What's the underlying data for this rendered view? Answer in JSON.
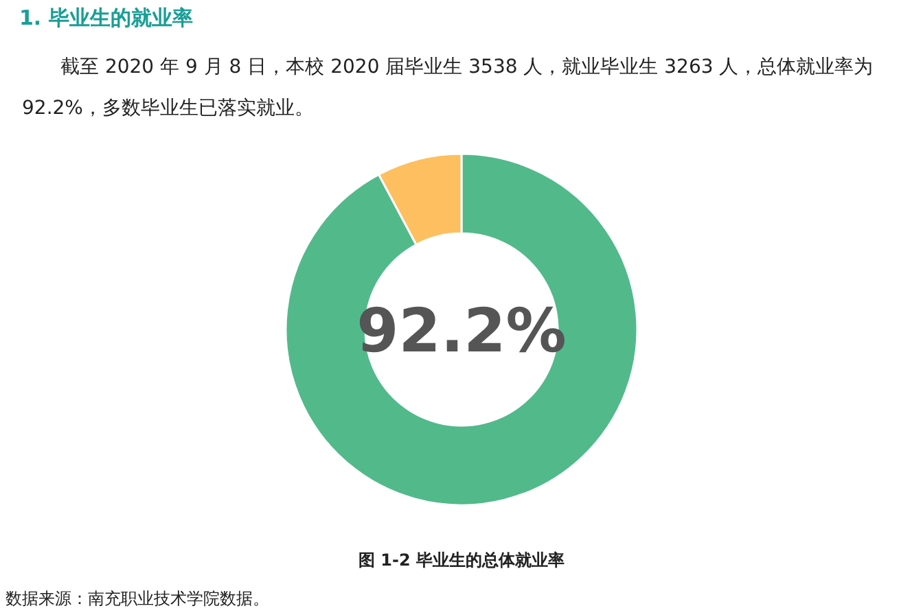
{
  "chart_data": {
    "type": "donut",
    "title": "1.  毕业生的就业率",
    "subtitle": "截至 2020 年 9 月 8 日，本校 2020 届毕业生 3538 人，就业毕业生 3263 人，总体就业率为 92.2%，多数毕业生已落实就业。",
    "categories": [
      null,
      null
    ],
    "values": [
      92.2,
      7.8
    ],
    "colors": [
      "#52b98b",
      "#fdbf60"
    ],
    "annotations": [
      "92.2%",
      "图 1-2 毕业生的总体就业率",
      "数据来源：南充职业技术学院数据。"
    ]
  }
}
